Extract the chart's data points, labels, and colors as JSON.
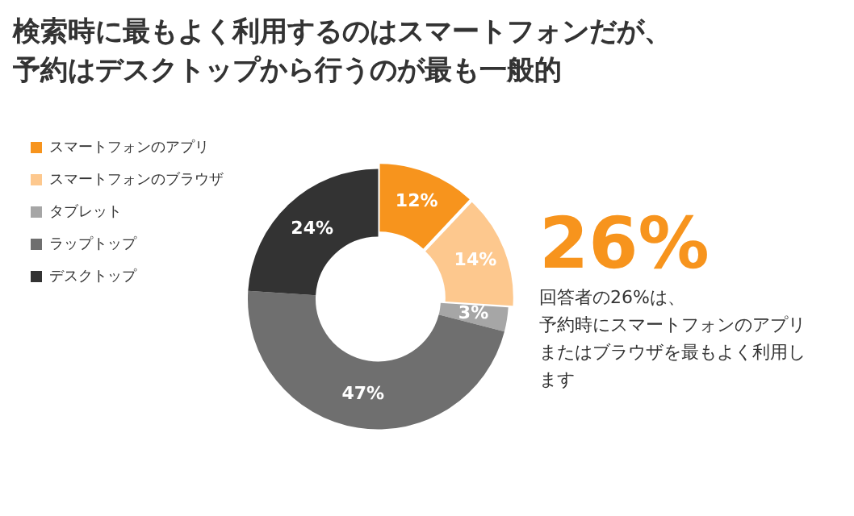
{
  "chart_data": {
    "type": "donut",
    "title": "検索時に最もよく利用するのはスマートフォンだが、予約はデスクトップから行うのが最も一般的",
    "categories": [
      "スマートフォンのアプリ",
      "スマートフォンのブラウザ",
      "タブレット",
      "ラップトップ",
      "デスクトップ"
    ],
    "values": [
      12,
      14,
      3,
      47,
      24
    ],
    "colors": [
      "#f7941d",
      "#fdc88e",
      "#a6a6a6",
      "#6f6f6f",
      "#333333"
    ],
    "value_labels": [
      "12%",
      "14%",
      "3%",
      "47%",
      "24%"
    ],
    "legend": "left",
    "annotations": [
      "26%",
      "回答者の26%は、",
      "予約時にスマートフォンのアプリまたはブラウザを最もよく利用します"
    ]
  }
}
